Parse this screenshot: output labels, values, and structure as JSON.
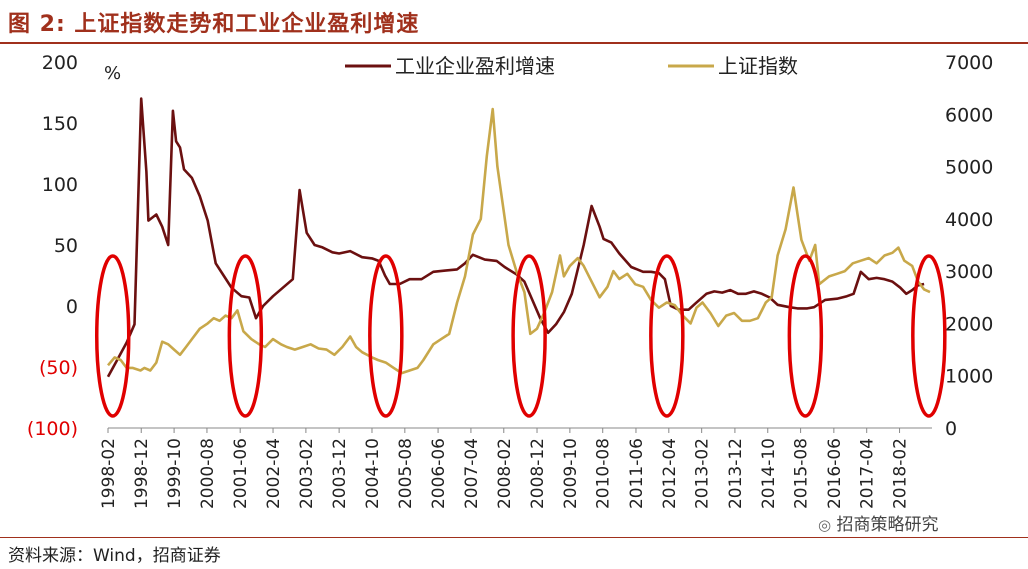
{
  "header": {
    "title": "图 2:  上证指数走势和工业企业盈利增速"
  },
  "footer": {
    "source": "资料来源：Wind，招商证券",
    "watermark": "招商策略研究"
  },
  "colors": {
    "title": "#a0301c",
    "profit": "#6b1010",
    "sse": "#c8a84a",
    "ellipse": "#e00000"
  },
  "chart_data": {
    "type": "line",
    "left_axis": {
      "unit": "%",
      "ticks": [
        {
          "value": 200,
          "label": "200",
          "color": "#222222"
        },
        {
          "value": 150,
          "label": "150",
          "color": "#222222"
        },
        {
          "value": 100,
          "label": "100",
          "color": "#222222"
        },
        {
          "value": 50,
          "label": "50",
          "color": "#222222"
        },
        {
          "value": 0,
          "label": "0",
          "color": "#222222"
        },
        {
          "value": -50,
          "label": "(50)",
          "color": "#e00000"
        },
        {
          "value": -100,
          "label": "(100)",
          "color": "#e00000"
        }
      ],
      "range": [
        -100,
        200
      ]
    },
    "right_axis": {
      "ticks": [
        {
          "value": 7000,
          "label": "7000"
        },
        {
          "value": 6000,
          "label": "6000"
        },
        {
          "value": 5000,
          "label": "5000"
        },
        {
          "value": 4000,
          "label": "4000"
        },
        {
          "value": 3000,
          "label": "3000"
        },
        {
          "value": 2000,
          "label": "2000"
        },
        {
          "value": 1000,
          "label": "1000"
        },
        {
          "value": 0,
          "label": "0"
        }
      ],
      "range": [
        0,
        7000
      ]
    },
    "x_range": [
      1998.08,
      2018.9
    ],
    "x_ticks": [
      {
        "t": 1998.08,
        "label": "1998-02"
      },
      {
        "t": 1998.92,
        "label": "1998-12"
      },
      {
        "t": 1999.75,
        "label": "1999-10"
      },
      {
        "t": 2000.58,
        "label": "2000-08"
      },
      {
        "t": 2001.42,
        "label": "2001-06"
      },
      {
        "t": 2002.25,
        "label": "2002-04"
      },
      {
        "t": 2003.08,
        "label": "2003-02"
      },
      {
        "t": 2003.92,
        "label": "2003-12"
      },
      {
        "t": 2004.75,
        "label": "2004-10"
      },
      {
        "t": 2005.58,
        "label": "2005-08"
      },
      {
        "t": 2006.42,
        "label": "2006-06"
      },
      {
        "t": 2007.25,
        "label": "2007-04"
      },
      {
        "t": 2008.08,
        "label": "2008-02"
      },
      {
        "t": 2008.92,
        "label": "2008-12"
      },
      {
        "t": 2009.75,
        "label": "2009-10"
      },
      {
        "t": 2010.58,
        "label": "2010-08"
      },
      {
        "t": 2011.42,
        "label": "2011-06"
      },
      {
        "t": 2012.25,
        "label": "2012-04"
      },
      {
        "t": 2013.08,
        "label": "2013-02"
      },
      {
        "t": 2013.92,
        "label": "2013-12"
      },
      {
        "t": 2014.75,
        "label": "2014-10"
      },
      {
        "t": 2015.58,
        "label": "2015-08"
      },
      {
        "t": 2016.42,
        "label": "2016-06"
      },
      {
        "t": 2017.25,
        "label": "2017-04"
      },
      {
        "t": 2018.08,
        "label": "2018-02"
      }
    ],
    "series": [
      {
        "name": "工业企业盈利增速",
        "axis": "left",
        "color": "#6b1010",
        "points": [
          [
            1998.08,
            -58
          ],
          [
            1998.3,
            -45
          ],
          [
            1998.55,
            -30
          ],
          [
            1998.75,
            -15
          ],
          [
            1998.92,
            170
          ],
          [
            1999.05,
            110
          ],
          [
            1999.1,
            70
          ],
          [
            1999.3,
            75
          ],
          [
            1999.45,
            65
          ],
          [
            1999.6,
            50
          ],
          [
            1999.72,
            160
          ],
          [
            1999.8,
            135
          ],
          [
            1999.9,
            130
          ],
          [
            2000.0,
            112
          ],
          [
            2000.2,
            105
          ],
          [
            2000.4,
            90
          ],
          [
            2000.6,
            70
          ],
          [
            2000.8,
            35
          ],
          [
            2001.0,
            25
          ],
          [
            2001.2,
            15
          ],
          [
            2001.45,
            8
          ],
          [
            2001.65,
            7
          ],
          [
            2001.82,
            -10
          ],
          [
            2002.0,
            0
          ],
          [
            2002.25,
            8
          ],
          [
            2002.5,
            15
          ],
          [
            2002.75,
            22
          ],
          [
            2002.92,
            95
          ],
          [
            2003.1,
            60
          ],
          [
            2003.3,
            50
          ],
          [
            2003.5,
            48
          ],
          [
            2003.75,
            44
          ],
          [
            2003.92,
            43
          ],
          [
            2004.2,
            45
          ],
          [
            2004.5,
            40
          ],
          [
            2004.75,
            39
          ],
          [
            2004.92,
            37
          ],
          [
            2005.08,
            25
          ],
          [
            2005.2,
            18
          ],
          [
            2005.45,
            18
          ],
          [
            2005.7,
            22
          ],
          [
            2006.0,
            22
          ],
          [
            2006.3,
            28
          ],
          [
            2006.6,
            29
          ],
          [
            2006.9,
            30
          ],
          [
            2007.1,
            35
          ],
          [
            2007.3,
            42
          ],
          [
            2007.6,
            38
          ],
          [
            2007.9,
            37
          ],
          [
            2008.1,
            32
          ],
          [
            2008.4,
            26
          ],
          [
            2008.6,
            20
          ],
          [
            2008.8,
            5
          ],
          [
            2009.0,
            -10
          ],
          [
            2009.2,
            -22
          ],
          [
            2009.4,
            -15
          ],
          [
            2009.6,
            -5
          ],
          [
            2009.8,
            10
          ],
          [
            2010.1,
            50
          ],
          [
            2010.3,
            82
          ],
          [
            2010.5,
            65
          ],
          [
            2010.6,
            55
          ],
          [
            2010.8,
            52
          ],
          [
            2011.0,
            43
          ],
          [
            2011.3,
            32
          ],
          [
            2011.6,
            28
          ],
          [
            2011.8,
            28
          ],
          [
            2012.0,
            27
          ],
          [
            2012.15,
            22
          ],
          [
            2012.3,
            0
          ],
          [
            2012.5,
            -3
          ],
          [
            2012.75,
            -3
          ],
          [
            2012.92,
            2
          ],
          [
            2013.2,
            10
          ],
          [
            2013.4,
            12
          ],
          [
            2013.6,
            11
          ],
          [
            2013.8,
            13
          ],
          [
            2014.0,
            10
          ],
          [
            2014.2,
            10
          ],
          [
            2014.4,
            12
          ],
          [
            2014.6,
            10
          ],
          [
            2014.8,
            7
          ],
          [
            2015.0,
            1
          ],
          [
            2015.3,
            -1
          ],
          [
            2015.5,
            -2
          ],
          [
            2015.75,
            -2
          ],
          [
            2015.92,
            -1
          ],
          [
            2016.2,
            5
          ],
          [
            2016.5,
            6
          ],
          [
            2016.75,
            8
          ],
          [
            2016.92,
            10
          ],
          [
            2017.1,
            28
          ],
          [
            2017.3,
            22
          ],
          [
            2017.5,
            23
          ],
          [
            2017.7,
            22
          ],
          [
            2017.9,
            20
          ],
          [
            2018.1,
            15
          ],
          [
            2018.25,
            10
          ],
          [
            2018.4,
            13
          ],
          [
            2018.55,
            17
          ],
          [
            2018.7,
            18
          ]
        ]
      },
      {
        "name": "上证指数",
        "axis": "right",
        "color": "#c8a84a",
        "points": [
          [
            1998.08,
            1200
          ],
          [
            1998.25,
            1350
          ],
          [
            1998.4,
            1300
          ],
          [
            1998.55,
            1150
          ],
          [
            1998.7,
            1150
          ],
          [
            1998.9,
            1100
          ],
          [
            1999.0,
            1150
          ],
          [
            1999.15,
            1100
          ],
          [
            1999.3,
            1250
          ],
          [
            1999.45,
            1650
          ],
          [
            1999.6,
            1600
          ],
          [
            1999.75,
            1500
          ],
          [
            1999.9,
            1400
          ],
          [
            2000.05,
            1550
          ],
          [
            2000.2,
            1700
          ],
          [
            2000.4,
            1900
          ],
          [
            2000.6,
            2000
          ],
          [
            2000.75,
            2100
          ],
          [
            2000.9,
            2050
          ],
          [
            2001.05,
            2150
          ],
          [
            2001.2,
            2100
          ],
          [
            2001.35,
            2250
          ],
          [
            2001.5,
            1850
          ],
          [
            2001.7,
            1700
          ],
          [
            2001.9,
            1600
          ],
          [
            2002.05,
            1550
          ],
          [
            2002.25,
            1700
          ],
          [
            2002.45,
            1600
          ],
          [
            2002.6,
            1550
          ],
          [
            2002.8,
            1500
          ],
          [
            2003.0,
            1550
          ],
          [
            2003.2,
            1600
          ],
          [
            2003.4,
            1520
          ],
          [
            2003.6,
            1500
          ],
          [
            2003.8,
            1400
          ],
          [
            2004.0,
            1550
          ],
          [
            2004.2,
            1750
          ],
          [
            2004.35,
            1550
          ],
          [
            2004.5,
            1450
          ],
          [
            2004.75,
            1350
          ],
          [
            2004.9,
            1300
          ],
          [
            2005.1,
            1250
          ],
          [
            2005.3,
            1150
          ],
          [
            2005.5,
            1050
          ],
          [
            2005.7,
            1100
          ],
          [
            2005.9,
            1150
          ],
          [
            2006.05,
            1300
          ],
          [
            2006.3,
            1600
          ],
          [
            2006.5,
            1700
          ],
          [
            2006.7,
            1800
          ],
          [
            2006.9,
            2400
          ],
          [
            2007.1,
            2900
          ],
          [
            2007.3,
            3700
          ],
          [
            2007.5,
            4000
          ],
          [
            2007.65,
            5200
          ],
          [
            2007.8,
            6100
          ],
          [
            2007.92,
            5000
          ],
          [
            2008.05,
            4300
          ],
          [
            2008.2,
            3500
          ],
          [
            2008.4,
            3000
          ],
          [
            2008.6,
            2600
          ],
          [
            2008.75,
            1800
          ],
          [
            2008.92,
            1900
          ],
          [
            2009.1,
            2200
          ],
          [
            2009.3,
            2600
          ],
          [
            2009.5,
            3300
          ],
          [
            2009.6,
            2900
          ],
          [
            2009.75,
            3100
          ],
          [
            2009.95,
            3250
          ],
          [
            2010.1,
            3100
          ],
          [
            2010.3,
            2800
          ],
          [
            2010.5,
            2500
          ],
          [
            2010.7,
            2700
          ],
          [
            2010.85,
            3000
          ],
          [
            2011.0,
            2850
          ],
          [
            2011.2,
            2950
          ],
          [
            2011.4,
            2750
          ],
          [
            2011.6,
            2700
          ],
          [
            2011.8,
            2450
          ],
          [
            2012.0,
            2300
          ],
          [
            2012.2,
            2400
          ],
          [
            2012.4,
            2350
          ],
          [
            2012.6,
            2150
          ],
          [
            2012.8,
            2000
          ],
          [
            2012.95,
            2300
          ],
          [
            2013.1,
            2400
          ],
          [
            2013.3,
            2200
          ],
          [
            2013.5,
            1950
          ],
          [
            2013.7,
            2150
          ],
          [
            2013.9,
            2200
          ],
          [
            2014.1,
            2050
          ],
          [
            2014.3,
            2050
          ],
          [
            2014.5,
            2100
          ],
          [
            2014.7,
            2400
          ],
          [
            2014.85,
            2500
          ],
          [
            2015.0,
            3300
          ],
          [
            2015.2,
            3800
          ],
          [
            2015.4,
            4600
          ],
          [
            2015.5,
            4100
          ],
          [
            2015.6,
            3600
          ],
          [
            2015.8,
            3200
          ],
          [
            2015.95,
            3500
          ],
          [
            2016.05,
            2750
          ],
          [
            2016.3,
            2900
          ],
          [
            2016.5,
            2950
          ],
          [
            2016.7,
            3000
          ],
          [
            2016.9,
            3150
          ],
          [
            2017.1,
            3200
          ],
          [
            2017.3,
            3250
          ],
          [
            2017.5,
            3150
          ],
          [
            2017.7,
            3300
          ],
          [
            2017.9,
            3350
          ],
          [
            2018.05,
            3450
          ],
          [
            2018.2,
            3200
          ],
          [
            2018.4,
            3100
          ],
          [
            2018.55,
            2800
          ],
          [
            2018.7,
            2650
          ],
          [
            2018.85,
            2600
          ]
        ]
      }
    ],
    "legend": {
      "position": "top",
      "entries": [
        "工业企业盈利增速",
        "上证指数"
      ]
    },
    "highlights": [
      {
        "t": 1998.2,
        "label": "1998-02"
      },
      {
        "t": 2001.55,
        "label": "2001-06"
      },
      {
        "t": 2005.1,
        "label": "2005-08"
      },
      {
        "t": 2008.72,
        "label": "2008-12"
      },
      {
        "t": 2012.2,
        "label": "2012-04"
      },
      {
        "t": 2015.7,
        "label": "2015-08"
      },
      {
        "t": 2018.82,
        "label": "2018-02"
      }
    ]
  }
}
